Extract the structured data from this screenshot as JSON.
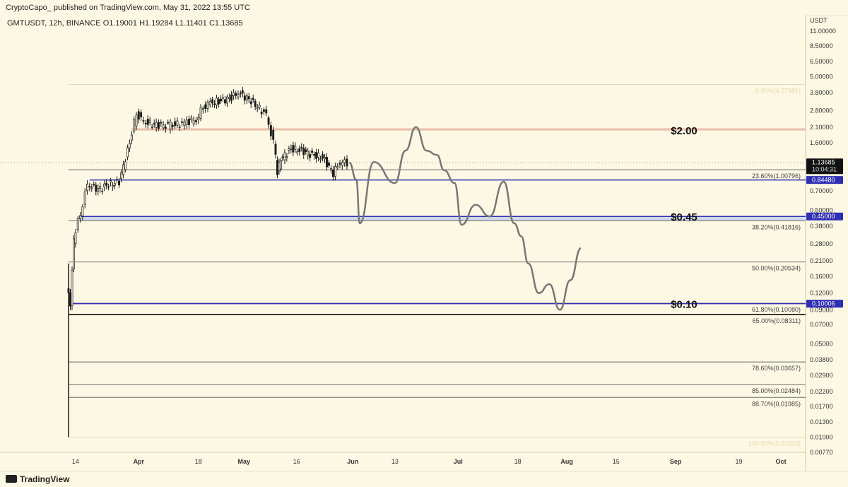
{
  "header": {
    "publisher_line": "CryptoCapo_ published on TradingView.com, May 31, 2022 13:55 UTC",
    "symbol_line": "GMTUSDT, 12h, BINANCE  O1.19001  H1.19284  L1.11401  C1.13685"
  },
  "footer": {
    "brand": "TradingView"
  },
  "colors": {
    "background": "#fdf8e3",
    "candle": "#1a1a1a",
    "projection": "#777777",
    "level_line": "#2f2fb5",
    "resistance_zone": "#e8b9a6",
    "support_zone": "#c9d2e8",
    "fib_line": "#555555"
  },
  "chart_data": {
    "type": "candlestick",
    "instrument": "GMTUSDT",
    "interval": "12h",
    "exchange": "BINANCE",
    "last_ohlc": {
      "open": 1.19001,
      "high": 1.19284,
      "low": 1.11401,
      "close": 1.13685
    },
    "y_axis": {
      "unit_label": "USDT",
      "scale": "log",
      "ticks": [
        "11.00000",
        "8.50000",
        "6.50000",
        "5.00000",
        "3.80000",
        "2.80000",
        "2.10000",
        "1.60000",
        "1.13685",
        "0.84480",
        "0.70000",
        "0.50000",
        "0.45000",
        "0.38000",
        "0.28000",
        "0.21000",
        "0.16000",
        "0.12000",
        "0.10006",
        "0.09000",
        "0.07000",
        "0.05000",
        "0.03800",
        "0.02900",
        "0.02200",
        "0.01700",
        "0.01300",
        "0.01000",
        "0.00770"
      ],
      "ylim": [
        0.0077,
        11.0
      ]
    },
    "x_axis": {
      "ticks": [
        "14",
        "Apr",
        "18",
        "May",
        "16",
        "Jun",
        "13",
        "Jul",
        "18",
        "Aug",
        "15",
        "Sep",
        "19",
        "Oct"
      ],
      "range": [
        "2022-03-12",
        "2022-10-04"
      ]
    },
    "price_badges": [
      {
        "label": "1.13685",
        "sublabel": "10:04:31",
        "value": 1.13685,
        "style": "dark"
      },
      {
        "label": "0.84480",
        "value": 0.8448,
        "style": "blue"
      },
      {
        "label": "0.45000",
        "value": 0.45,
        "style": "blue"
      },
      {
        "label": "0.10006",
        "value": 0.10006,
        "style": "blue"
      }
    ],
    "annotations": [
      {
        "text": "$2.00",
        "value": 2.0
      },
      {
        "text": "$0.45",
        "value": 0.45
      },
      {
        "text": "$0.10",
        "value": 0.1
      }
    ],
    "horizontal_levels": [
      {
        "value": 0.8448,
        "kind": "blue-line",
        "from": "2022-03-18"
      },
      {
        "value": 0.45,
        "kind": "blue-line",
        "from": "2022-03-15"
      },
      {
        "value": 0.10006,
        "kind": "blue-line",
        "from": "2022-03-12"
      },
      {
        "value": 0.0831,
        "kind": "black-line",
        "from": "2022-03-12"
      }
    ],
    "zones": [
      {
        "name": "resistance",
        "low": 1.98,
        "high": 2.06,
        "from": "2022-03-30"
      },
      {
        "name": "support",
        "low": 0.415,
        "high": 0.455,
        "from": "2022-03-15"
      }
    ],
    "fibonacci": [
      {
        "label": "0.00%(4.37981)",
        "value": 4.37981,
        "faded": true
      },
      {
        "label": "23.60%(1.00796)",
        "value": 1.00796,
        "faded": false
      },
      {
        "label": "38.20%(0.41816)",
        "value": 0.41816,
        "faded": false
      },
      {
        "label": "50.00%(0.20534)",
        "value": 0.20534,
        "faded": false
      },
      {
        "label": "61.80%(0.10080)",
        "value": 0.1008,
        "faded": false
      },
      {
        "label": "65.00%(0.08311)",
        "value": 0.08311,
        "faded": false
      },
      {
        "label": "78.60%(0.03657)",
        "value": 0.03657,
        "faded": false
      },
      {
        "label": "85.00%(0.02484)",
        "value": 0.02484,
        "faded": false
      },
      {
        "label": "88.70%(0.01985)",
        "value": 0.01985,
        "faded": false
      },
      {
        "label": "100.00%(0.01000)",
        "value": 0.01,
        "faded": true
      }
    ],
    "price_path": {
      "t": [
        "2022-03-12",
        "2022-03-13",
        "2022-03-14",
        "2022-03-16",
        "2022-03-18",
        "2022-03-21",
        "2022-03-24",
        "2022-03-27",
        "2022-03-30",
        "2022-04-01",
        "2022-04-03",
        "2022-04-06",
        "2022-04-10",
        "2022-04-14",
        "2022-04-18",
        "2022-04-20",
        "2022-04-22",
        "2022-04-25",
        "2022-04-28",
        "2022-04-30",
        "2022-05-03",
        "2022-05-06",
        "2022-05-08",
        "2022-05-10",
        "2022-05-11",
        "2022-05-12",
        "2022-05-15",
        "2022-05-18",
        "2022-05-21",
        "2022-05-24",
        "2022-05-27",
        "2022-05-29",
        "2022-05-31"
      ],
      "price": [
        0.13,
        0.1,
        0.3,
        0.48,
        0.78,
        0.72,
        0.78,
        0.82,
        1.6,
        2.7,
        2.3,
        2.2,
        2.15,
        2.25,
        2.4,
        3.0,
        3.2,
        3.3,
        3.5,
        3.8,
        3.4,
        2.9,
        2.6,
        1.6,
        0.98,
        1.2,
        1.45,
        1.4,
        1.3,
        1.25,
        0.95,
        1.15,
        1.14
      ],
      "all_time_low_wick": 0.01
    },
    "projection_path": {
      "t": [
        "2022-05-31",
        "2022-06-02",
        "2022-06-03",
        "2022-06-07",
        "2022-06-13",
        "2022-06-16",
        "2022-06-19",
        "2022-06-22",
        "2022-06-25",
        "2022-06-27",
        "2022-06-30",
        "2022-07-02",
        "2022-07-06",
        "2022-07-10",
        "2022-07-14",
        "2022-07-17",
        "2022-07-19",
        "2022-07-21",
        "2022-07-24",
        "2022-07-27",
        "2022-07-30",
        "2022-08-02",
        "2022-08-05"
      ],
      "price": [
        1.14,
        0.85,
        0.4,
        1.15,
        0.8,
        1.4,
        2.1,
        1.4,
        1.3,
        1.0,
        0.8,
        0.39,
        0.55,
        0.45,
        0.82,
        0.4,
        0.32,
        0.2,
        0.12,
        0.14,
        0.09,
        0.15,
        0.26
      ]
    }
  }
}
